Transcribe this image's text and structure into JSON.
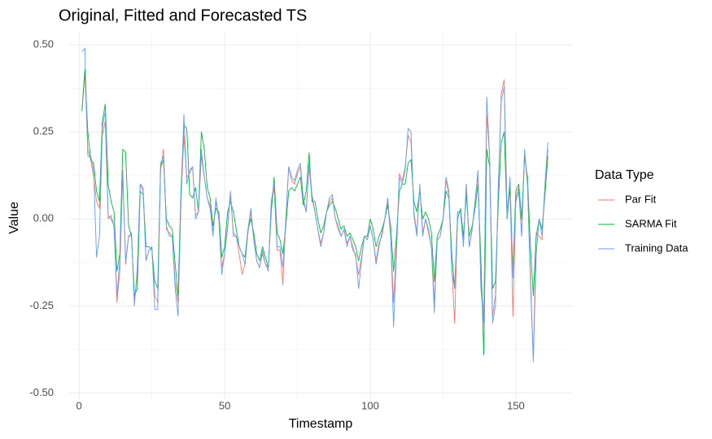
{
  "chart_data": {
    "type": "line",
    "title": "Original, Fitted and Forecasted TS",
    "x_label": "Timestamp",
    "y_label": "Value",
    "legend_title": "Data Type",
    "legend_position": "right",
    "xlim": [
      -3.4,
      169.3
    ],
    "ylim": [
      -0.52,
      0.54
    ],
    "xticks": [
      0,
      50,
      100,
      150
    ],
    "yticks": [
      {
        "value": 0.5,
        "label": "0.50"
      },
      {
        "value": 0.25,
        "label": "0.25"
      },
      {
        "value": 0,
        "label": "0.00"
      },
      {
        "value": -0.25,
        "label": "-0.25"
      },
      {
        "value": -0.5,
        "label": "-0.50"
      }
    ],
    "xminorticks": [
      25,
      75,
      125
    ],
    "yminorticks": [
      0.375,
      0.125,
      -0.125,
      -0.375
    ],
    "grid": true,
    "x": [
      1,
      2,
      3,
      4,
      5,
      6,
      7,
      8,
      9,
      10,
      11,
      12,
      13,
      14,
      15,
      16,
      17,
      18,
      19,
      20,
      21,
      22,
      23,
      24,
      25,
      26,
      27,
      28,
      29,
      30,
      31,
      32,
      33,
      34,
      35,
      36,
      37,
      38,
      39,
      40,
      41,
      42,
      43,
      44,
      45,
      46,
      47,
      48,
      49,
      50,
      51,
      52,
      53,
      54,
      55,
      56,
      57,
      58,
      59,
      60,
      61,
      62,
      63,
      64,
      65,
      66,
      67,
      68,
      69,
      70,
      71,
      72,
      73,
      74,
      75,
      76,
      77,
      78,
      79,
      80,
      81,
      82,
      83,
      84,
      85,
      86,
      87,
      88,
      89,
      90,
      91,
      92,
      93,
      94,
      95,
      96,
      97,
      98,
      99,
      100,
      101,
      102,
      103,
      104,
      105,
      106,
      107,
      108,
      109,
      110,
      111,
      112,
      113,
      114,
      115,
      116,
      117,
      118,
      119,
      120,
      121,
      122,
      123,
      124,
      125,
      126,
      127,
      128,
      129,
      130,
      131,
      132,
      133,
      134,
      135,
      136,
      137,
      138,
      139,
      140,
      141,
      142,
      143,
      144,
      145,
      146,
      147,
      148,
      149,
      150,
      151,
      152,
      153,
      154,
      155,
      156,
      157,
      158,
      159,
      160,
      161
    ],
    "series": [
      {
        "name": "Par Fit",
        "color": "#F8766D",
        "values": [
          0.31,
          0.42,
          0.2,
          0.17,
          0.12,
          0.05,
          0.03,
          0.24,
          0.28,
          0.0,
          0.01,
          -0.02,
          -0.24,
          -0.15,
          0.14,
          -0.13,
          -0.05,
          -0.05,
          -0.24,
          -0.16,
          0.1,
          0.09,
          -0.12,
          -0.09,
          -0.08,
          -0.22,
          -0.24,
          0.14,
          0.2,
          -0.03,
          -0.04,
          -0.05,
          -0.18,
          -0.24,
          0.05,
          0.24,
          0.12,
          0.13,
          0.15,
          0.01,
          0.02,
          0.18,
          0.12,
          0.06,
          0.04,
          -0.04,
          0.05,
          0.0,
          -0.14,
          -0.1,
          -0.03,
          0.07,
          -0.04,
          -0.05,
          -0.1,
          -0.16,
          -0.13,
          -0.04,
          0.02,
          -0.06,
          -0.12,
          -0.14,
          -0.1,
          -0.13,
          -0.14,
          0.04,
          0.09,
          -0.09,
          -0.09,
          -0.19,
          0.0,
          0.15,
          0.11,
          0.1,
          0.13,
          0.15,
          0.05,
          0.02,
          0.15,
          0.06,
          0.02,
          -0.03,
          -0.07,
          -0.04,
          0.02,
          0.05,
          0.06,
          0.0,
          -0.03,
          -0.05,
          -0.03,
          -0.07,
          -0.05,
          -0.08,
          -0.11,
          -0.16,
          -0.11,
          -0.05,
          -0.06,
          -0.02,
          -0.06,
          -0.12,
          -0.07,
          -0.05,
          0.0,
          0.05,
          -0.05,
          -0.24,
          -0.08,
          0.13,
          0.11,
          0.15,
          0.24,
          0.22,
          0.02,
          -0.04,
          0.09,
          -0.04,
          0.0,
          -0.04,
          -0.08,
          -0.24,
          -0.06,
          -0.05,
          0.0,
          0.11,
          0.07,
          -0.14,
          -0.3,
          0.02,
          0.02,
          -0.07,
          0.1,
          -0.08,
          -0.03,
          0.05,
          0.13,
          -0.18,
          -0.28,
          0.3,
          0.18,
          -0.28,
          -0.22,
          0.1,
          0.36,
          0.4,
          0.02,
          0.1,
          -0.28,
          0.06,
          0.09,
          -0.05,
          0.19,
          0.1,
          -0.16,
          -0.4,
          -0.04,
          -0.05,
          -0.06,
          0.09,
          0.2
        ]
      },
      {
        "name": "SARMA Fit",
        "color": "#00BA38",
        "values": [
          0.31,
          0.43,
          0.25,
          0.17,
          0.16,
          0.08,
          0.05,
          0.28,
          0.33,
          0.1,
          0.05,
          0.02,
          -0.15,
          -0.1,
          0.2,
          0.19,
          -0.02,
          -0.05,
          -0.22,
          -0.2,
          0.08,
          0.07,
          -0.08,
          -0.08,
          -0.09,
          -0.18,
          -0.2,
          0.15,
          0.17,
          0.0,
          -0.02,
          -0.03,
          -0.13,
          -0.22,
          0.08,
          0.27,
          0.26,
          0.07,
          0.06,
          0.09,
          0.02,
          0.25,
          0.2,
          0.09,
          0.06,
          -0.02,
          0.03,
          0.02,
          -0.11,
          -0.08,
          0.02,
          0.05,
          0.02,
          -0.03,
          -0.08,
          -0.1,
          -0.11,
          -0.03,
          0.0,
          -0.04,
          -0.1,
          -0.12,
          -0.08,
          -0.11,
          -0.14,
          0.02,
          0.12,
          -0.04,
          -0.06,
          -0.1,
          -0.02,
          0.08,
          0.09,
          0.08,
          0.1,
          0.12,
          0.04,
          0.08,
          0.19,
          0.05,
          0.05,
          0.0,
          -0.04,
          -0.02,
          0.02,
          0.04,
          0.05,
          0.03,
          0.0,
          -0.03,
          -0.02,
          -0.05,
          -0.04,
          -0.06,
          -0.08,
          -0.12,
          -0.08,
          -0.05,
          -0.05,
          0.0,
          -0.03,
          -0.08,
          -0.05,
          -0.03,
          0.0,
          0.04,
          -0.02,
          -0.15,
          -0.05,
          0.08,
          0.1,
          0.1,
          0.16,
          0.17,
          0.05,
          0.02,
          0.08,
          0.0,
          0.02,
          0.0,
          -0.04,
          -0.18,
          -0.05,
          -0.03,
          0.0,
          0.08,
          0.06,
          -0.1,
          -0.2,
          0.0,
          0.03,
          -0.05,
          0.07,
          -0.05,
          -0.02,
          0.03,
          0.1,
          -0.12,
          -0.39,
          0.2,
          0.15,
          -0.2,
          -0.18,
          0.05,
          0.22,
          0.25,
          0.0,
          0.09,
          -0.15,
          0.08,
          0.1,
          0.0,
          0.18,
          0.12,
          -0.08,
          -0.22,
          -0.05,
          0.0,
          -0.03,
          0.07,
          0.18
        ]
      },
      {
        "name": "Training Data",
        "color": "#619CFF",
        "values": [
          0.48,
          0.49,
          0.18,
          0.18,
          0.14,
          -0.11,
          -0.05,
          0.26,
          0.31,
          0.01,
          0.0,
          -0.02,
          -0.22,
          -0.12,
          0.13,
          -0.12,
          -0.05,
          -0.04,
          -0.25,
          -0.14,
          0.1,
          0.08,
          -0.12,
          -0.09,
          -0.08,
          -0.26,
          -0.26,
          0.16,
          0.18,
          -0.02,
          -0.05,
          -0.05,
          -0.2,
          -0.28,
          0.05,
          0.3,
          0.1,
          0.14,
          0.15,
          0.0,
          0.02,
          0.2,
          0.12,
          0.06,
          0.03,
          -0.05,
          0.06,
          0.0,
          -0.16,
          -0.1,
          -0.02,
          0.08,
          -0.05,
          -0.05,
          -0.08,
          -0.1,
          -0.13,
          -0.03,
          0.03,
          -0.06,
          -0.12,
          -0.14,
          -0.09,
          -0.13,
          -0.15,
          0.05,
          0.1,
          -0.08,
          -0.08,
          -0.14,
          0.0,
          0.15,
          0.12,
          0.11,
          0.14,
          0.16,
          0.06,
          0.02,
          0.16,
          0.07,
          0.02,
          -0.03,
          -0.08,
          -0.04,
          0.02,
          0.06,
          0.07,
          0.0,
          -0.02,
          -0.05,
          -0.03,
          -0.08,
          -0.05,
          -0.09,
          -0.1,
          -0.2,
          -0.12,
          -0.05,
          -0.06,
          -0.02,
          -0.06,
          -0.13,
          -0.08,
          -0.04,
          0.0,
          0.06,
          -0.04,
          -0.31,
          -0.1,
          0.12,
          0.1,
          0.14,
          0.26,
          0.25,
          0.01,
          -0.05,
          0.1,
          -0.05,
          0.0,
          -0.03,
          -0.08,
          -0.27,
          -0.06,
          -0.05,
          0.0,
          0.12,
          0.08,
          -0.15,
          -0.2,
          0.02,
          0.02,
          -0.08,
          0.1,
          -0.08,
          -0.03,
          0.05,
          0.14,
          -0.2,
          -0.3,
          0.35,
          0.18,
          -0.3,
          -0.25,
          0.1,
          0.34,
          0.38,
          0.0,
          0.12,
          -0.17,
          0.05,
          0.08,
          -0.05,
          0.2,
          0.1,
          -0.18,
          -0.41,
          -0.1,
          0.0,
          -0.05,
          0.1,
          0.22
        ]
      }
    ]
  }
}
